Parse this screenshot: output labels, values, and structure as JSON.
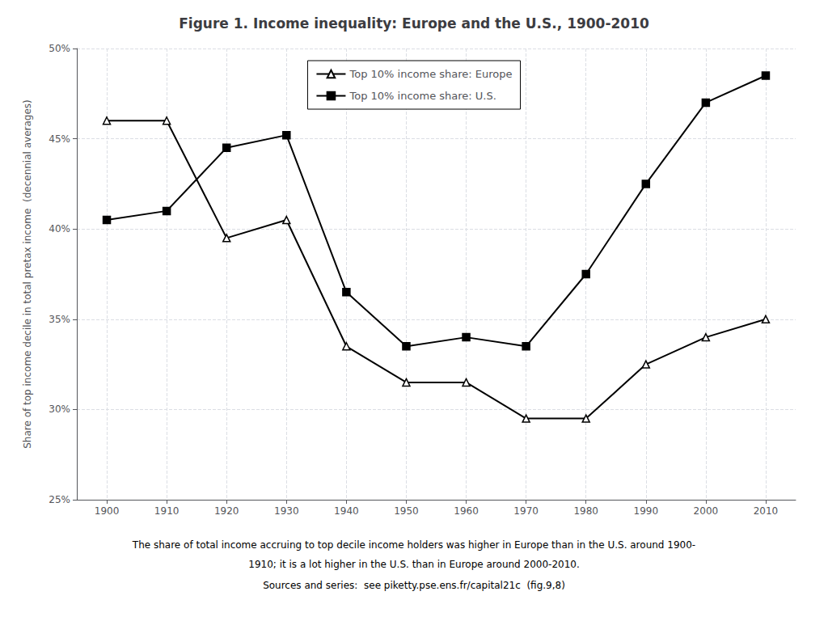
{
  "chart_data": {
    "type": "line",
    "title": "Figure 1. Income inequality: Europe and the U.S., 1900-2010",
    "ylabel": "Share of top income decile in total pretax income  (decennial averages)",
    "x": [
      1900,
      1910,
      1920,
      1930,
      1940,
      1950,
      1960,
      1970,
      1980,
      1990,
      2000,
      2010
    ],
    "series": [
      {
        "name": "Top 10% income share: Europe",
        "color": "#000000",
        "marker": "triangle_open",
        "values": [
          46.0,
          46.0,
          39.5,
          40.5,
          33.5,
          31.5,
          31.5,
          29.5,
          29.5,
          32.5,
          34.0,
          35.0
        ]
      },
      {
        "name": "Top 10% income share: U.S.",
        "color": "#000000",
        "marker": "square",
        "values": [
          40.5,
          41.0,
          44.5,
          45.2,
          36.5,
          33.5,
          34.0,
          33.5,
          37.5,
          42.5,
          47.0,
          48.5
        ]
      }
    ],
    "xlim": [
      1895,
      2015
    ],
    "xticks": [
      1900,
      1910,
      1920,
      1930,
      1940,
      1950,
      1960,
      1970,
      1980,
      1990,
      2000,
      2010
    ],
    "ylim": [
      25.0,
      50.0
    ],
    "yticks": [
      {
        "value": 25,
        "label": "25%"
      },
      {
        "value": 30,
        "label": "30%"
      },
      {
        "value": 35,
        "label": "35%"
      },
      {
        "value": 40,
        "label": "40%"
      },
      {
        "value": 45,
        "label": "45%"
      },
      {
        "value": 50,
        "label": "50%"
      }
    ],
    "grid": true,
    "legend": "upper center",
    "annotations": [
      "The share of total income accruing to top decile income holders was higher in Europe than in the U.S. around 1900-",
      "1910; it is a lot higher in the U.S. than in Europe around 2000-2010.",
      "Sources and series:  see piketty.pse.ens.fr/capital21c  (fig.9,8)"
    ]
  }
}
